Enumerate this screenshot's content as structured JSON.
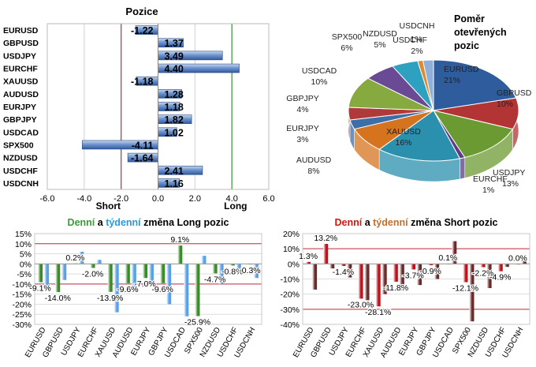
{
  "colors": {
    "long_bar": "#4f7fc2",
    "green_daily": "#3a8a2a",
    "blue_weekly": "#5aa0e6",
    "red_daily": "#c0101a",
    "brown_weekly": "#6b2a2a",
    "long_line": "#3a9a3a",
    "short_line": "#c03040",
    "title_green": "#3a9a3a",
    "title_blue": "#2a9ad8",
    "title_red": "#d01818",
    "title_brown": "#c07030"
  },
  "chart_data": [
    {
      "type": "bar",
      "orientation": "horizontal",
      "title": "Pozice",
      "categories": [
        "EURUSD",
        "GBPUSD",
        "USDJPY",
        "EURCHF",
        "XAUUSD",
        "AUDUSD",
        "EURJPY",
        "GBPJPY",
        "USDCAD",
        "SPX500",
        "NZDUSD",
        "USDCHF",
        "USDCNH"
      ],
      "values": [
        -1.22,
        1.37,
        3.49,
        4.4,
        -1.18,
        1.28,
        1.18,
        1.82,
        1.02,
        -4.11,
        -1.64,
        2.41,
        1.16
      ],
      "labels": [
        "-1.22",
        "1.37",
        "3.49",
        "4.40",
        "-1.18",
        "1.28",
        "1.18",
        "1.82",
        "1.02",
        "-4.11",
        "-1.64",
        "2.41",
        "1.16"
      ],
      "xlim": [
        -6,
        6
      ],
      "xticks": [
        "-6.0",
        "-4.0",
        "-2.0",
        "0.0",
        "2.0",
        "4.0",
        "6.0"
      ],
      "xtick_values": [
        -6,
        -4,
        -2,
        0,
        2,
        4,
        6
      ],
      "reference_lines": [
        {
          "label": "Short",
          "value": -2
        },
        {
          "label": "Long",
          "value": 4
        }
      ]
    },
    {
      "type": "pie",
      "title": "Poměr otevřených pozic",
      "title_lines": [
        "Poměr",
        "otevřených",
        "pozic"
      ],
      "slices": [
        {
          "label": "EURUSD",
          "value": 21,
          "text": "21%",
          "color": "#2e5c9c"
        },
        {
          "label": "GBPUSD",
          "value": 10,
          "text": "10%",
          "color": "#b23434"
        },
        {
          "label": "USDJPY",
          "value": 13,
          "text": "13%",
          "color": "#6c9a32"
        },
        {
          "label": "EURCHF",
          "value": 1,
          "text": "1%",
          "color": "#5c3c86"
        },
        {
          "label": "XAUUSD",
          "value": 16,
          "text": "16%",
          "color": "#2a90ae"
        },
        {
          "label": "AUDUSD",
          "value": 8,
          "text": "8%",
          "color": "#d6731e"
        },
        {
          "label": "EURJPY",
          "value": 3,
          "text": "3%",
          "color": "#3c6ea8"
        },
        {
          "label": "GBPJPY",
          "value": 4,
          "text": "4%",
          "color": "#b03a3a"
        },
        {
          "label": "USDCAD",
          "value": 10,
          "text": "10%",
          "color": "#86aa40"
        },
        {
          "label": "SPX500",
          "value": 6,
          "text": "6%",
          "color": "#6a4a94"
        },
        {
          "label": "NZDUSD",
          "value": 5,
          "text": "5%",
          "color": "#2ea0c0"
        },
        {
          "label": "USDCHF",
          "value": 1,
          "text": "1%",
          "color": "#e08a30"
        },
        {
          "label": "USDCNH",
          "value": 2,
          "text": "2%",
          "color": "#8fb0d8"
        }
      ]
    },
    {
      "type": "bar",
      "title_parts": [
        "Denní",
        " a ",
        "týdenní",
        " změna Long pozic"
      ],
      "categories": [
        "EURUSD",
        "GBPUSD",
        "USDJPY",
        "EURCHF",
        "XAUUSD",
        "AUDUSD",
        "EURJPY",
        "GBPJPY",
        "USDCAD",
        "SPX500",
        "NZDUSD",
        "USDCHF",
        "USDCNH"
      ],
      "series": [
        {
          "values": [
            -9.1,
            -14.0,
            0.2,
            -2.0,
            -13.9,
            -9.6,
            -7.0,
            -9.6,
            9.1,
            -25.9,
            -4.7,
            -0.8,
            -0.3
          ]
        },
        {
          "values": [
            -11,
            -8,
            6,
            2,
            -24,
            -14,
            -10,
            -20,
            -26,
            4,
            -10,
            -3,
            -7
          ]
        }
      ],
      "data_labels": [
        "-9.1%",
        "-14.0%",
        "0.2%",
        "-2.0%",
        "-13.9%",
        "-9.6%",
        "-7.0%",
        "-9.6%",
        "9.1%",
        "-25.9%",
        "-4.7%",
        "-0.8%",
        "-0.3%"
      ],
      "ylim": [
        -30,
        15
      ],
      "yticks": [
        "15%",
        "10%",
        "5%",
        "0%",
        "-5%",
        "-10%",
        "-15%",
        "-20%",
        "-25%",
        "-30%"
      ],
      "ytick_values": [
        15,
        10,
        5,
        0,
        -5,
        -10,
        -15,
        -20,
        -25,
        -30
      ],
      "reference_lines": [
        10,
        -10
      ]
    },
    {
      "type": "bar",
      "title_parts": [
        "Denní",
        " a ",
        "týdenní",
        " změna Short pozic"
      ],
      "categories": [
        "EURUSD",
        "GBPUSD",
        "USDJPY",
        "EURCHF",
        "XAUUSD",
        "AUDUSD",
        "EURJPY",
        "GBPJPY",
        "USDCAD",
        "SPX500",
        "NZDUSD",
        "USDCHF",
        "USDCNH"
      ],
      "series": [
        {
          "values": [
            1.3,
            13.2,
            -1.4,
            -23.0,
            -28.1,
            -11.8,
            -3.7,
            -0.9,
            0.1,
            -12.1,
            -2.2,
            -4.9,
            0.0
          ]
        },
        {
          "values": [
            -17,
            -3,
            -9,
            -24,
            -20,
            -18,
            -14,
            -10,
            15,
            -38,
            -16,
            -2,
            2
          ]
        }
      ],
      "data_labels": [
        "1.3%",
        "13.2%",
        "-1.4%",
        "-23.0%",
        "-28.1%",
        "-11.8%",
        "-3.7%",
        "-0.9%",
        "0.1%",
        "-12.1%",
        "-2.2%",
        "-4.9%",
        "0.0%"
      ],
      "ylim": [
        -40,
        20
      ],
      "yticks": [
        "20%",
        "10%",
        "0%",
        "-10%",
        "-20%",
        "-30%",
        "-40%"
      ],
      "ytick_values": [
        20,
        10,
        0,
        -10,
        -20,
        -30,
        -40
      ],
      "reference_lines": [
        10,
        -30
      ]
    }
  ]
}
